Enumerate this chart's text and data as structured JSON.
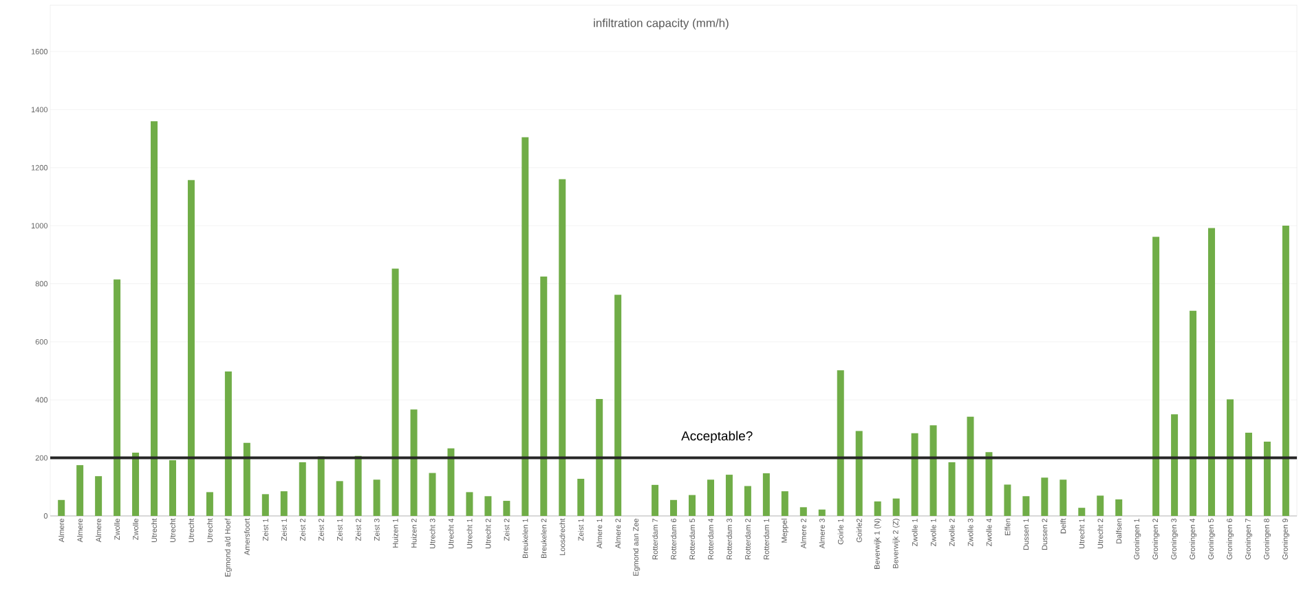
{
  "chart_data": {
    "type": "bar",
    "title": "infiltration capacity (mm/h)",
    "categories": [
      "Almere",
      "Almere",
      "Almere",
      "Zwolle",
      "Zwolle",
      "Utrecht",
      "Utrecht",
      "Utrecht",
      "Utrecht",
      "Egmond a/d Hoef",
      "Amersfoort",
      "Zeist 1",
      "Zeist 1",
      "Zeist 2",
      "Zeist 2",
      "Zeist 1",
      "Zeist 2",
      "Zeist 3",
      "Huizen 1",
      "Huizen 2",
      "Utrecht 3",
      "Utrecht 4",
      "Utrecht 1",
      "Utrecht 2",
      "Zeist 2",
      "Breukelen 1",
      "Breukelen 2",
      "Loosdrecht",
      "Zeist 1",
      "Almere 1",
      "Almere 2",
      "Egmond aan Zee",
      "Rotterdam 7",
      "Rotterdam 6",
      "Rotterdam 5",
      "Rotterdam 4",
      "Rotterdam 3",
      "Rotterdam 2",
      "Rotterdam 1",
      "Meppel",
      "Almere 2",
      "Almere 3",
      "Goirle 1",
      "Goirle2",
      "Beverwijk 1 (N)",
      "Beverwijk 2 (Z)",
      "Zwolle 1",
      "Zwolle 1",
      "Zwolle 2",
      "Zwolle 3",
      "Zwolle 4",
      "Effen",
      "Dussen 1",
      "Dussen 2",
      "Delft",
      "Utrecht 1",
      "Utrecht 2",
      "Dalfsen",
      "Groningen 1",
      "Groningen 2",
      "Groningen 3",
      "Groningen 4",
      "Groningen 5",
      "Groningen 6",
      "Groningen 7",
      "Groningen 8",
      "Groningen 9"
    ],
    "values": [
      55,
      175,
      137,
      815,
      218,
      1360,
      192,
      1157,
      82,
      498,
      252,
      75,
      85,
      185,
      205,
      120,
      207,
      125,
      852,
      367,
      148,
      233,
      82,
      68,
      52,
      1305,
      825,
      1160,
      128,
      403,
      762,
      null,
      107,
      55,
      72,
      125,
      142,
      103,
      147,
      85,
      30,
      22,
      502,
      293,
      50,
      60,
      285,
      312,
      185,
      342,
      220,
      108,
      68,
      132,
      125,
      28,
      70,
      57,
      null,
      962,
      350,
      707,
      992,
      402,
      287,
      256,
      1000
    ],
    "color": "#70ad47",
    "ylim": [
      0,
      1760
    ],
    "yticks": [
      0,
      200,
      400,
      600,
      800,
      1000,
      1200,
      1400,
      1600
    ],
    "grid": "y",
    "ref_lines": [
      {
        "axis": "y",
        "value": 200,
        "label": "Acceptable?",
        "color": "#262626"
      }
    ]
  }
}
